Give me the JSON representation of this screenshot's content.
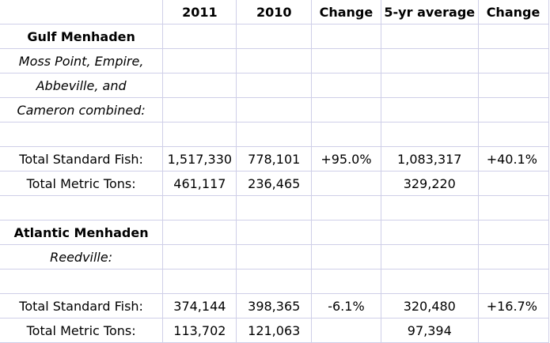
{
  "header": {
    "col_2011": "2011",
    "col_2010": "2010",
    "col_change": "Change",
    "col_avg": "5-yr average",
    "col_change2": "Change"
  },
  "gulf": {
    "title": "Gulf Menhaden",
    "sub1": "Moss Point, Empire,",
    "sub2": "Abbeville, and",
    "sub3": "Cameron combined:",
    "fish": {
      "label": "Total Standard Fish:",
      "v2011": "1,517,330",
      "v2010": "778,101",
      "change": "+95.0%",
      "avg": "1,083,317",
      "change2": "+40.1%"
    },
    "tons": {
      "label": "Total Metric Tons:",
      "v2011": "461,117",
      "v2010": "236,465",
      "change": "",
      "avg": "329,220",
      "change2": ""
    }
  },
  "atlantic": {
    "title": "Atlantic Menhaden",
    "sub1": "Reedville:",
    "fish": {
      "label": "Total Standard Fish:",
      "v2011": "374,144",
      "v2010": "398,365",
      "change": "-6.1%",
      "avg": "320,480",
      "change2": "+16.7%"
    },
    "tons": {
      "label": "Total Metric Tons:",
      "v2011": "113,702",
      "v2010": "121,063",
      "change": "",
      "avg": "97,394",
      "change2": ""
    }
  },
  "colors": {
    "grid": "#cfcfe8"
  }
}
